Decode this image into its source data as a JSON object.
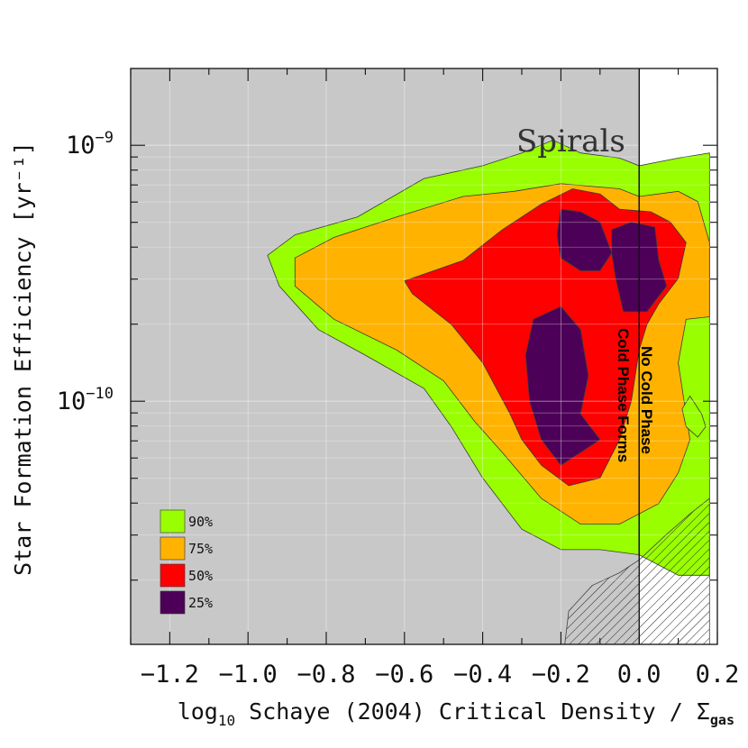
{
  "chart_data": {
    "type": "contour",
    "title": "",
    "xlabel": {
      "prefix": "log",
      "subscript": "10",
      "main": " Schaye (2004) Critical Density / Σ",
      "main_subscript": "gas"
    },
    "ylabel": "Star Formation Efficiency [yr⁻¹]",
    "xlim": [
      -1.3,
      0.2
    ],
    "ylim_log10": [
      -10.95,
      -8.7
    ],
    "y_scale": "log",
    "x_ticks": [
      {
        "value": -1.2,
        "label": "−1.2"
      },
      {
        "value": -1.0,
        "label": "−1.0"
      },
      {
        "value": -0.8,
        "label": "−0.8"
      },
      {
        "value": -0.6,
        "label": "−0.6"
      },
      {
        "value": -0.4,
        "label": "−0.4"
      },
      {
        "value": -0.2,
        "label": "−0.2"
      },
      {
        "value": 0.0,
        "label": "0.0"
      },
      {
        "value": 0.2,
        "label": "0.2"
      }
    ],
    "y_ticks": [
      {
        "value_log10": -9,
        "base": "10",
        "exp": "−9"
      },
      {
        "value_log10": -10,
        "base": "10",
        "exp": "−10"
      }
    ],
    "divider_x": 0.0,
    "annotations": {
      "region": "Spirals",
      "no_cold_phase": "No Cold Phase",
      "cold_phase_forms": "Cold Phase Forms"
    },
    "legend": [
      {
        "label": "90%",
        "color": "#99ff00"
      },
      {
        "label": "75%",
        "color": "#ffb300"
      },
      {
        "label": "50%",
        "color": "#ff0000"
      },
      {
        "label": "25%",
        "color": "#4d0057"
      }
    ],
    "contour_levels": [
      {
        "level": "90%",
        "color": "#99ff00",
        "polygons": [
          [
            [
              -0.95,
              -9.43
            ],
            [
              -0.88,
              -9.35
            ],
            [
              -0.72,
              -9.28
            ],
            [
              -0.55,
              -9.13
            ],
            [
              -0.4,
              -9.08
            ],
            [
              -0.3,
              -9.03
            ],
            [
              -0.22,
              -8.98
            ],
            [
              -0.15,
              -9.03
            ],
            [
              -0.05,
              -9.05
            ],
            [
              0.0,
              -9.08
            ],
            [
              0.1,
              -9.05
            ],
            [
              0.18,
              -9.03
            ],
            [
              0.18,
              -10.68
            ],
            [
              0.1,
              -10.68
            ],
            [
              0.0,
              -10.6
            ],
            [
              -0.1,
              -10.58
            ],
            [
              -0.2,
              -10.58
            ],
            [
              -0.3,
              -10.5
            ],
            [
              -0.4,
              -10.3
            ],
            [
              -0.48,
              -10.1
            ],
            [
              -0.55,
              -9.95
            ],
            [
              -0.7,
              -9.82
            ],
            [
              -0.82,
              -9.72
            ],
            [
              -0.92,
              -9.55
            ]
          ]
        ]
      },
      {
        "level": "75%",
        "color": "#ffb300",
        "polygons": [
          [
            [
              -0.88,
              -9.44
            ],
            [
              -0.78,
              -9.36
            ],
            [
              -0.62,
              -9.28
            ],
            [
              -0.45,
              -9.2
            ],
            [
              -0.32,
              -9.18
            ],
            [
              -0.2,
              -9.15
            ],
            [
              -0.05,
              -9.17
            ],
            [
              0.0,
              -9.2
            ],
            [
              0.1,
              -9.18
            ],
            [
              0.15,
              -9.22
            ],
            [
              0.18,
              -9.38
            ],
            [
              0.18,
              -9.67
            ],
            [
              0.12,
              -9.68
            ],
            [
              0.1,
              -9.85
            ],
            [
              0.13,
              -10.15
            ],
            [
              0.1,
              -10.28
            ],
            [
              0.05,
              -10.4
            ],
            [
              -0.05,
              -10.48
            ],
            [
              -0.15,
              -10.48
            ],
            [
              -0.25,
              -10.38
            ],
            [
              -0.35,
              -10.2
            ],
            [
              -0.42,
              -10.08
            ],
            [
              -0.5,
              -9.92
            ],
            [
              -0.62,
              -9.8
            ],
            [
              -0.78,
              -9.68
            ],
            [
              -0.88,
              -9.55
            ]
          ]
        ]
      },
      {
        "level": "75% gap",
        "color": "#99ff00",
        "polygons": [
          [
            [
              0.13,
              -9.98
            ],
            [
              0.16,
              -10.05
            ],
            [
              0.17,
              -10.1
            ],
            [
              0.15,
              -10.14
            ],
            [
              0.12,
              -10.1
            ],
            [
              0.11,
              -10.03
            ]
          ]
        ]
      },
      {
        "level": "50%",
        "color": "#ff0000",
        "polygons": [
          [
            [
              -0.6,
              -9.53
            ],
            [
              -0.45,
              -9.45
            ],
            [
              -0.35,
              -9.33
            ],
            [
              -0.25,
              -9.23
            ],
            [
              -0.17,
              -9.17
            ],
            [
              -0.1,
              -9.19
            ],
            [
              -0.05,
              -9.25
            ],
            [
              0.03,
              -9.26
            ],
            [
              0.08,
              -9.3
            ],
            [
              0.12,
              -9.38
            ],
            [
              0.1,
              -9.52
            ],
            [
              0.05,
              -9.62
            ],
            [
              0.02,
              -9.7
            ],
            [
              0.0,
              -9.8
            ],
            [
              -0.02,
              -10.0
            ],
            [
              -0.05,
              -10.15
            ],
            [
              -0.1,
              -10.3
            ],
            [
              -0.18,
              -10.33
            ],
            [
              -0.25,
              -10.25
            ],
            [
              -0.3,
              -10.15
            ],
            [
              -0.33,
              -10.05
            ],
            [
              -0.4,
              -9.85
            ],
            [
              -0.48,
              -9.7
            ],
            [
              -0.58,
              -9.58
            ]
          ]
        ]
      },
      {
        "level": "25% a",
        "color": "#4d0057",
        "polygons": [
          [
            [
              -0.27,
              -9.68
            ],
            [
              -0.2,
              -9.63
            ],
            [
              -0.15,
              -9.72
            ],
            [
              -0.13,
              -9.9
            ],
            [
              -0.15,
              -10.05
            ],
            [
              -0.1,
              -10.15
            ],
            [
              -0.15,
              -10.2
            ],
            [
              -0.2,
              -10.25
            ],
            [
              -0.25,
              -10.15
            ],
            [
              -0.28,
              -10.0
            ],
            [
              -0.29,
              -9.82
            ]
          ]
        ]
      },
      {
        "level": "25% b",
        "color": "#4d0057",
        "polygons": [
          [
            [
              -0.2,
              -9.25
            ],
            [
              -0.15,
              -9.26
            ],
            [
              -0.1,
              -9.3
            ],
            [
              -0.07,
              -9.42
            ],
            [
              -0.1,
              -9.49
            ],
            [
              -0.15,
              -9.49
            ],
            [
              -0.2,
              -9.44
            ],
            [
              -0.21,
              -9.35
            ]
          ]
        ]
      },
      {
        "level": "25% c",
        "color": "#4d0057",
        "polygons": [
          [
            [
              -0.07,
              -9.33
            ],
            [
              -0.02,
              -9.3
            ],
            [
              0.04,
              -9.32
            ],
            [
              0.05,
              -9.45
            ],
            [
              0.07,
              -9.55
            ],
            [
              0.02,
              -9.65
            ],
            [
              -0.04,
              -9.65
            ],
            [
              -0.06,
              -9.52
            ],
            [
              -0.07,
              -9.42
            ]
          ]
        ]
      }
    ],
    "hatched_region": [
      [
        -0.19,
        -10.95
      ],
      [
        -0.18,
        -10.82
      ],
      [
        -0.12,
        -10.72
      ],
      [
        -0.05,
        -10.67
      ],
      [
        0.0,
        -10.62
      ],
      [
        0.07,
        -10.52
      ],
      [
        0.13,
        -10.44
      ],
      [
        0.18,
        -10.38
      ],
      [
        0.18,
        -10.95
      ]
    ]
  }
}
